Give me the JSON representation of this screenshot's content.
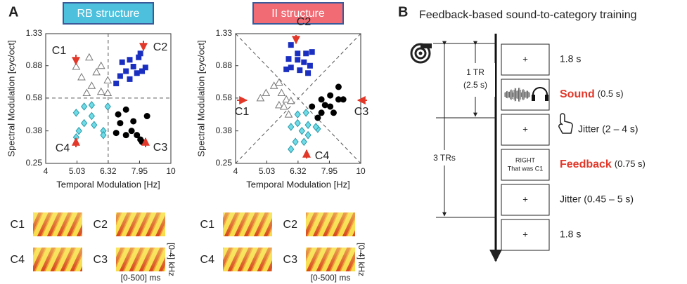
{
  "panel_labels": [
    "A",
    "B"
  ],
  "chart_data": [
    {
      "type": "scatter",
      "title": "RB structure",
      "xlabel": "Temporal Modulation [Hz]",
      "ylabel": "Spectral Modulation [cyc/oct]",
      "log_scale": true,
      "xlim": [
        4,
        10
      ],
      "ylim": [
        0.25,
        1.33
      ],
      "xticks": [
        4,
        5.03,
        6.32,
        7.95,
        10
      ],
      "yticks": [
        0.25,
        0.38,
        0.58,
        0.88,
        1.33
      ],
      "vlines": [
        6.32
      ],
      "hlines": [
        0.58
      ],
      "diagonals": false,
      "title_color": "#4cc0dc",
      "series": [
        {
          "name": "C1",
          "marker": "triangle",
          "color": "#ffffff",
          "edge": "#777777",
          "x": [
            5.0,
            5.5,
            5.2,
            5.8,
            5.6,
            6.3,
            5.4,
            6.0,
            6.3,
            6.0
          ],
          "values": [
            0.87,
            0.98,
            0.76,
            0.81,
            0.68,
            0.73,
            0.62,
            0.63,
            0.62,
            0.88
          ]
        },
        {
          "name": "C2",
          "marker": "square",
          "color": "#1a2fc0",
          "edge": "#1a2fc0",
          "x": [
            7.9,
            7.4,
            7.0,
            8.0,
            7.6,
            8.3,
            7.2,
            7.8,
            6.9,
            7.4,
            8.1,
            6.7
          ],
          "values": [
            0.98,
            0.95,
            0.92,
            1.03,
            0.87,
            0.86,
            0.82,
            0.8,
            0.77,
            0.74,
            0.82,
            0.7
          ]
        },
        {
          "name": "C3",
          "marker": "circle",
          "color": "#000000",
          "edge": "#000000",
          "x": [
            6.8,
            7.2,
            6.9,
            7.6,
            8.4,
            7.5,
            7.2,
            7.8,
            8.0,
            8.1,
            6.7
          ],
          "values": [
            0.47,
            0.5,
            0.42,
            0.43,
            0.46,
            0.38,
            0.36,
            0.36,
            0.34,
            0.33,
            0.37
          ]
        },
        {
          "name": "C4",
          "marker": "diamond",
          "color": "#6fdbe6",
          "edge": "#2a9aaa",
          "x": [
            5.3,
            5.0,
            5.6,
            5.3,
            5.7,
            5.1,
            6.1,
            6.1,
            5.0,
            5.6,
            6.3
          ],
          "values": [
            0.52,
            0.48,
            0.46,
            0.42,
            0.41,
            0.38,
            0.38,
            0.36,
            0.35,
            0.53,
            0.52
          ]
        }
      ]
    },
    {
      "type": "scatter",
      "title": "II structure",
      "xlabel": "Temporal Modulation [Hz]",
      "ylabel": "Spectral Modulation [cyc/oct]",
      "log_scale": true,
      "xlim": [
        4,
        10
      ],
      "ylim": [
        0.25,
        1.33
      ],
      "xticks": [
        4,
        5.03,
        6.32,
        7.95,
        10
      ],
      "yticks": [
        0.25,
        0.38,
        0.58,
        0.88,
        1.33
      ],
      "vlines": [],
      "hlines": [],
      "diagonals": true,
      "title_color": "#f06b74",
      "series": [
        {
          "name": "C1",
          "marker": "triangle",
          "color": "#ffffff",
          "edge": "#777777",
          "x": [
            4.8,
            5.3,
            5.5,
            5.0,
            5.6,
            5.8,
            5.5,
            5.7,
            5.9,
            6.0
          ],
          "values": [
            0.58,
            0.68,
            0.71,
            0.62,
            0.62,
            0.57,
            0.53,
            0.52,
            0.47,
            0.56
          ]
        },
        {
          "name": "C2",
          "marker": "square",
          "color": "#1a2fc0",
          "edge": "#1a2fc0",
          "x": [
            6.0,
            6.3,
            6.7,
            7.0,
            5.9,
            6.3,
            6.6,
            6.9,
            6.0,
            6.4,
            6.8,
            5.8
          ],
          "values": [
            1.15,
            1.03,
            1.03,
            1.05,
            0.96,
            0.95,
            0.92,
            0.88,
            0.86,
            0.83,
            0.8,
            0.84
          ]
        },
        {
          "name": "C3",
          "marker": "circle",
          "color": "#000000",
          "edge": "#000000",
          "x": [
            7.5,
            8.0,
            8.5,
            8.5,
            8.8,
            7.7,
            8.0,
            7.5,
            7.0,
            8.2,
            7.3
          ],
          "values": [
            0.57,
            0.6,
            0.67,
            0.57,
            0.57,
            0.53,
            0.52,
            0.48,
            0.52,
            0.48,
            0.45
          ]
        },
        {
          "name": "C4",
          "marker": "diamond",
          "color": "#6fdbe6",
          "edge": "#2a9aaa",
          "x": [
            6.3,
            6.7,
            6.3,
            6.8,
            6.0,
            6.5,
            6.8,
            7.3,
            7.2,
            6.2,
            6.0,
            6.6
          ],
          "values": [
            0.47,
            0.48,
            0.42,
            0.41,
            0.4,
            0.38,
            0.36,
            0.39,
            0.4,
            0.33,
            0.3,
            0.33
          ]
        }
      ]
    }
  ],
  "spectrograms": [
    {
      "labels": [
        "C1",
        "C2",
        "C4",
        "C3"
      ],
      "freq_range": "[0-4] kHz",
      "time_range": "[0-500] ms"
    },
    {
      "labels": [
        "C1",
        "C2",
        "C4",
        "C3"
      ],
      "freq_range": "[0-4] kHz",
      "time_range": "[0-500] ms"
    }
  ],
  "timeline": {
    "title": "Feedback-based sound-to-category training",
    "one_tr": "1 TR",
    "one_tr_duration": "(2.5 s)",
    "three_trs": "3 TRs",
    "screens": [
      {
        "lines": [
          "+"
        ],
        "label": "1.8 s"
      },
      {
        "lines": [],
        "emphasis": "Sound",
        "detail": "(0.5 s)"
      },
      {
        "lines": [
          "+"
        ],
        "label": "Jitter (2 – 4 s)"
      },
      {
        "lines": [
          "RIGHT",
          "That was C1"
        ],
        "emphasis": "Feedback",
        "detail": "(0.75 s)"
      },
      {
        "lines": [
          "+"
        ],
        "label": "Jitter (0.45 – 5 s)"
      },
      {
        "lines": [
          "+"
        ],
        "label": "1.8 s"
      }
    ]
  }
}
